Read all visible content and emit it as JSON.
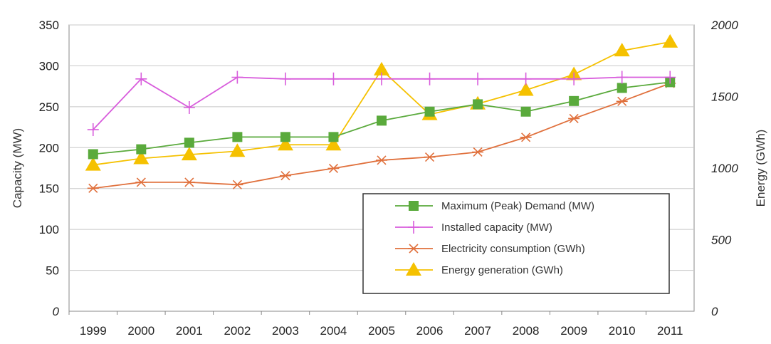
{
  "chart_data": {
    "type": "line",
    "categories": [
      "1999",
      "2000",
      "2001",
      "2002",
      "2003",
      "2004",
      "2005",
      "2006",
      "2007",
      "2008",
      "2009",
      "2010",
      "2011"
    ],
    "ylabel_left": "Capacity (MW)",
    "ylabel_right": "Energy (GWh)",
    "ylim_left": [
      0,
      350
    ],
    "ylim_right": [
      0,
      2000
    ],
    "yticks_left": [
      "0",
      "50",
      "100",
      "150",
      "200",
      "250",
      "300",
      "350"
    ],
    "yticks_right": [
      "0",
      "500",
      "1000",
      "1500",
      "2000"
    ],
    "grid": true,
    "legend_position": "bottom-right",
    "series": [
      {
        "name": "Maximum (Peak) Demand (MW)",
        "axis": "left",
        "color": "#5aaa3c",
        "marker": "square",
        "values": [
          192,
          198,
          206,
          213,
          213,
          213,
          233,
          244,
          253,
          244,
          257,
          273,
          280
        ]
      },
      {
        "name": "Installed capacity (MW)",
        "axis": "left",
        "color": "#d85cdc",
        "marker": "plus",
        "values": [
          222,
          284,
          249,
          286,
          284,
          284,
          284,
          284,
          284,
          284,
          284,
          286,
          286
        ]
      },
      {
        "name": "Electricity consumption (GWh)",
        "axis": "right",
        "color": "#e0703c",
        "marker": "asterisk",
        "values": [
          859,
          901,
          901,
          884,
          947,
          998,
          1055,
          1077,
          1112,
          1215,
          1346,
          1466,
          1592
        ]
      },
      {
        "name": "Energy generation (GWh)",
        "axis": "right",
        "color": "#f5c100",
        "marker": "triangle",
        "values": [
          1022,
          1067,
          1094,
          1118,
          1163,
          1163,
          1687,
          1375,
          1449,
          1545,
          1654,
          1820,
          1881
        ]
      }
    ]
  }
}
